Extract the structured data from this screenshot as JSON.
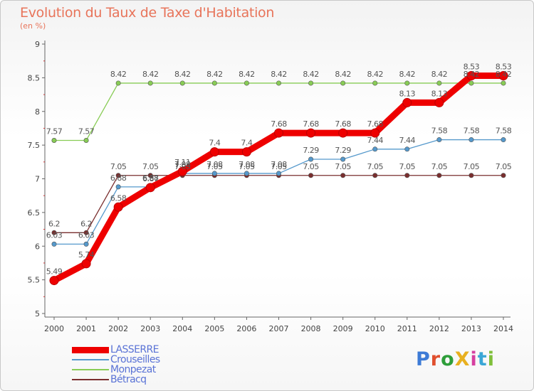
{
  "title": "Evolution du Taux de Taxe d'Habitation",
  "subtitle": "(en %)",
  "logo": {
    "text": "ProXiti",
    "colors": [
      "#3d7bd6",
      "#e04f2e",
      "#2e9e3a",
      "#e8b020",
      "#d63fa0",
      "#3aa6d6",
      "#7fbf3a"
    ]
  },
  "chart_data": {
    "type": "line",
    "title": "Evolution du Taux de Taxe d'Habitation",
    "ylabel": "(en %)",
    "xlabel": "",
    "ylim": [
      5,
      9
    ],
    "yticks": [
      "5",
      "5.5",
      "6",
      "6.5",
      "7",
      "7.5",
      "8",
      "8.5",
      "9"
    ],
    "categories": [
      "2000",
      "2001",
      "2002",
      "2003",
      "2004",
      "2005",
      "2006",
      "2007",
      "2008",
      "2009",
      "2010",
      "2011",
      "2012",
      "2013",
      "2014"
    ],
    "series": [
      {
        "name": "Bétracq",
        "color": "#7a2e2e",
        "values": [
          6.2,
          6.2,
          7.05,
          7.05,
          7.05,
          7.05,
          7.05,
          7.05,
          7.05,
          7.05,
          7.05,
          7.05,
          7.05,
          7.05,
          7.05
        ],
        "labels": [
          "6.2",
          "6.2",
          "7.05",
          "7.05",
          "7.05",
          "7.05",
          "7.05",
          "7.05",
          "7.05",
          "7.05",
          "7.05",
          "7.05",
          "7.05",
          "7.05",
          "7.05"
        ]
      },
      {
        "name": "Monpezat",
        "color": "#88cc55",
        "values": [
          7.57,
          7.57,
          8.42,
          8.42,
          8.42,
          8.42,
          8.42,
          8.42,
          8.42,
          8.42,
          8.42,
          8.42,
          8.42,
          8.42,
          8.42
        ],
        "labels": [
          "7.57",
          "7.57",
          "8.42",
          "8.42",
          "8.42",
          "8.42",
          "8.42",
          "8.42",
          "8.42",
          "8.42",
          "8.42",
          "8.42",
          "8.42",
          "8.42",
          "8.42"
        ]
      },
      {
        "name": "Crouseilles",
        "color": "#5599cc",
        "values": [
          6.03,
          6.03,
          6.88,
          6.88,
          7.08,
          7.08,
          7.08,
          7.08,
          7.29,
          7.29,
          7.44,
          7.44,
          7.58,
          7.58,
          7.58
        ],
        "labels": [
          "6.03",
          "6.03",
          "6.88",
          "6.88",
          "7.08",
          "7.08",
          "7.08",
          "7.08",
          "7.29",
          "7.29",
          "7.44",
          "7.44",
          "7.58",
          "7.58",
          "7.58"
        ]
      },
      {
        "name": "LASSERRE",
        "color": "#ee0000",
        "values": [
          5.49,
          5.74,
          6.58,
          6.87,
          7.11,
          7.4,
          7.4,
          7.68,
          7.68,
          7.68,
          7.68,
          8.13,
          8.13,
          8.53,
          8.53
        ],
        "labels": [
          "5.49",
          "5.74",
          "6.58",
          "6.87",
          "7.11",
          "7.4",
          "7.4",
          "7.68",
          "7.68",
          "7.68",
          "7.68",
          "8.13",
          "8.13",
          "8.53",
          "8.53"
        ]
      }
    ],
    "legend": [
      "LASSERRE",
      "Crouseilles",
      "Monpezat",
      "Bétracq"
    ],
    "legend_position": "bottom-left",
    "grid": false
  }
}
